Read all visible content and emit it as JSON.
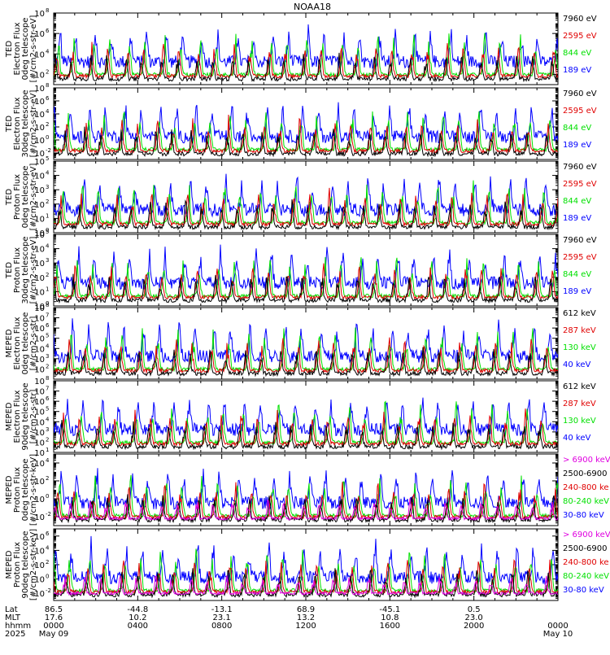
{
  "title": "NOAA18",
  "colors": {
    "black": "#000000",
    "red": "#e00000",
    "green": "#00e000",
    "blue": "#0000ff",
    "magenta": "#e000e0"
  },
  "chart_data": [
    {
      "type": "line",
      "ylabel": [
        "TED",
        "Electron Flux",
        "0deg telescope",
        "[#/cm2-s-str-eV]"
      ],
      "yscale": "log",
      "ylim_exp": [
        1,
        8
      ],
      "yticks": [
        {
          "base": "10",
          "exp": "2",
          "value_exp": 2
        },
        {
          "base": "10",
          "exp": "4",
          "value_exp": 4
        },
        {
          "base": "10",
          "exp": "6",
          "value_exp": 6
        },
        {
          "base": "10",
          "exp": "8",
          "value_exp": 8
        }
      ],
      "legend": [
        {
          "label": "7960 eV",
          "color": "black"
        },
        {
          "label": "2595 eV",
          "color": "red"
        },
        {
          "label": "844 eV",
          "color": "green"
        },
        {
          "label": "189 eV",
          "color": "blue"
        }
      ]
    },
    {
      "type": "line",
      "ylabel": [
        "TED",
        "Electron Flux",
        "30deg telescope",
        "[#/cm2-s-str-eV]"
      ],
      "yscale": "log",
      "ylim_exp": [
        -3,
        8
      ],
      "yticks": [
        {
          "base": "10",
          "exp": "-2",
          "value_exp": -2
        },
        {
          "base": "10",
          "exp": "0",
          "value_exp": 0
        },
        {
          "base": "10",
          "exp": "2",
          "value_exp": 2
        },
        {
          "base": "10",
          "exp": "4",
          "value_exp": 4
        },
        {
          "base": "10",
          "exp": "6",
          "value_exp": 6
        },
        {
          "base": "10",
          "exp": "8",
          "value_exp": 8
        }
      ],
      "legend": [
        {
          "label": "7960 eV",
          "color": "black"
        },
        {
          "label": "2595 eV",
          "color": "red"
        },
        {
          "label": "844 eV",
          "color": "green"
        },
        {
          "label": "189 eV",
          "color": "blue"
        }
      ]
    },
    {
      "type": "line",
      "ylabel": [
        "TED",
        "Proton Flux",
        "0deg telescope",
        "[#/cm2-s-str-eV]"
      ],
      "yscale": "log",
      "ylim_exp": [
        0,
        5
      ],
      "yticks": [
        {
          "base": "10",
          "exp": "0",
          "value_exp": 0
        },
        {
          "base": "10",
          "exp": "1",
          "value_exp": 1
        },
        {
          "base": "10",
          "exp": "2",
          "value_exp": 2
        },
        {
          "base": "10",
          "exp": "3",
          "value_exp": 3
        },
        {
          "base": "10",
          "exp": "4",
          "value_exp": 4
        },
        {
          "base": "10",
          "exp": "5",
          "value_exp": 5
        }
      ],
      "legend": [
        {
          "label": "7960 eV",
          "color": "black"
        },
        {
          "label": "2595 eV",
          "color": "red"
        },
        {
          "label": "844 eV",
          "color": "green"
        },
        {
          "label": "189 eV",
          "color": "blue"
        }
      ]
    },
    {
      "type": "line",
      "ylabel": [
        "TED",
        "Proton Flux",
        "30deg telescope",
        "[#/cm2-s-str-eV]"
      ],
      "yscale": "log",
      "ylim_exp": [
        0,
        5
      ],
      "yticks": [
        {
          "base": "10",
          "exp": "0",
          "value_exp": 0
        },
        {
          "base": "10",
          "exp": "1",
          "value_exp": 1
        },
        {
          "base": "10",
          "exp": "2",
          "value_exp": 2
        },
        {
          "base": "10",
          "exp": "3",
          "value_exp": 3
        },
        {
          "base": "10",
          "exp": "4",
          "value_exp": 4
        },
        {
          "base": "10",
          "exp": "5",
          "value_exp": 5
        }
      ],
      "legend": [
        {
          "label": "7960 eV",
          "color": "black"
        },
        {
          "label": "2595 eV",
          "color": "red"
        },
        {
          "label": "844 eV",
          "color": "green"
        },
        {
          "label": "189 eV",
          "color": "blue"
        }
      ]
    },
    {
      "type": "line",
      "ylabel": [
        "MEPED",
        "Electron Flux",
        "0deg telescope",
        "[#/cm2-s-str]"
      ],
      "yscale": "log",
      "ylim_exp": [
        1,
        8
      ],
      "yticks": [
        {
          "base": "10",
          "exp": "2",
          "value_exp": 2
        },
        {
          "base": "10",
          "exp": "3",
          "value_exp": 3
        },
        {
          "base": "10",
          "exp": "4",
          "value_exp": 4
        },
        {
          "base": "10",
          "exp": "5",
          "value_exp": 5
        },
        {
          "base": "10",
          "exp": "6",
          "value_exp": 6
        },
        {
          "base": "10",
          "exp": "7",
          "value_exp": 7
        },
        {
          "base": "10",
          "exp": "8",
          "value_exp": 8
        }
      ],
      "legend": [
        {
          "label": "612 keV",
          "color": "black"
        },
        {
          "label": "287 keV",
          "color": "red"
        },
        {
          "label": "130 keV",
          "color": "green"
        },
        {
          "label": "40 keV",
          "color": "blue"
        }
      ]
    },
    {
      "type": "line",
      "ylabel": [
        "MEPED",
        "Electron Flux",
        "90deg telescope",
        "[#/cm2-s-str]"
      ],
      "yscale": "log",
      "ylim_exp": [
        1,
        8
      ],
      "yticks": [
        {
          "base": "10",
          "exp": "1",
          "value_exp": 1
        },
        {
          "base": "10",
          "exp": "2",
          "value_exp": 2
        },
        {
          "base": "10",
          "exp": "3",
          "value_exp": 3
        },
        {
          "base": "10",
          "exp": "4",
          "value_exp": 4
        },
        {
          "base": "10",
          "exp": "5",
          "value_exp": 5
        },
        {
          "base": "10",
          "exp": "6",
          "value_exp": 6
        },
        {
          "base": "10",
          "exp": "7",
          "value_exp": 7
        },
        {
          "base": "10",
          "exp": "8",
          "value_exp": 8
        }
      ],
      "legend": [
        {
          "label": "612 keV",
          "color": "black"
        },
        {
          "label": "287 keV",
          "color": "red"
        },
        {
          "label": "130 keV",
          "color": "green"
        },
        {
          "label": "40 keV",
          "color": "blue"
        }
      ]
    },
    {
      "type": "line",
      "ylabel": [
        "MEPED",
        "Proton Flux",
        "0deg telescope",
        "[#/cm2-s-str-keV]"
      ],
      "yscale": "log",
      "ylim_exp": [
        -3,
        5
      ],
      "yticks": [
        {
          "base": "10",
          "exp": "-2",
          "value_exp": -2
        },
        {
          "base": "10",
          "exp": "0",
          "value_exp": 0
        },
        {
          "base": "10",
          "exp": "2",
          "value_exp": 2
        },
        {
          "base": "10",
          "exp": "4",
          "value_exp": 4
        }
      ],
      "legend": [
        {
          "label": "> 6900 keV",
          "color": "magenta"
        },
        {
          "label": "2500-6900",
          "color": "black"
        },
        {
          "label": "240-800 ke",
          "color": "red"
        },
        {
          "label": "80-240 keV",
          "color": "green"
        },
        {
          "label": "30-80 keV",
          "color": "blue"
        }
      ]
    },
    {
      "type": "line",
      "ylabel": [
        "MEPED",
        "Proton Flux",
        "90deg telescope",
        "[#/cm2-s-str-keV]"
      ],
      "yscale": "log",
      "ylim_exp": [
        -3,
        7
      ],
      "yticks": [
        {
          "base": "10",
          "exp": "-2",
          "value_exp": -2
        },
        {
          "base": "10",
          "exp": "0",
          "value_exp": 0
        },
        {
          "base": "10",
          "exp": "2",
          "value_exp": 2
        },
        {
          "base": "10",
          "exp": "4",
          "value_exp": 4
        },
        {
          "base": "10",
          "exp": "6",
          "value_exp": 6
        }
      ],
      "legend": [
        {
          "label": "> 6900 keV",
          "color": "magenta"
        },
        {
          "label": "2500-6900",
          "color": "black"
        },
        {
          "label": "240-800 ke",
          "color": "red"
        },
        {
          "label": "80-240 keV",
          "color": "green"
        },
        {
          "label": "30-80 keV",
          "color": "blue"
        }
      ]
    }
  ],
  "x_axis": {
    "range_hours": [
      0,
      24
    ],
    "row_labels": [
      "Lat",
      "MLT",
      "hhmm",
      "2025"
    ],
    "ticks": [
      {
        "hour": 0,
        "lat": "86.5",
        "mlt": "17.6",
        "hhmm": "0000",
        "date": "May 09"
      },
      {
        "hour": 4,
        "lat": "-44.8",
        "mlt": "10.2",
        "hhmm": "0400",
        "date": ""
      },
      {
        "hour": 8,
        "lat": "-13.1",
        "mlt": "23.1",
        "hhmm": "0800",
        "date": ""
      },
      {
        "hour": 12,
        "lat": "68.9",
        "mlt": "13.2",
        "hhmm": "1200",
        "date": ""
      },
      {
        "hour": 16,
        "lat": "-45.1",
        "mlt": "10.8",
        "hhmm": "1600",
        "date": ""
      },
      {
        "hour": 20,
        "lat": "0.5",
        "mlt": "23.0",
        "hhmm": "2000",
        "date": ""
      },
      {
        "hour": 24,
        "lat": "",
        "mlt": "",
        "hhmm": "0000",
        "date": "May 10"
      }
    ]
  }
}
